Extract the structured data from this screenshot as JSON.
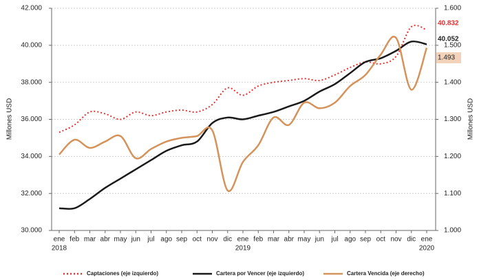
{
  "chart_data": {
    "type": "line",
    "categories": [
      "ene",
      "feb",
      "mar",
      "abr",
      "may",
      "jun",
      "jul",
      "ago",
      "sep",
      "oct",
      "nov",
      "dic",
      "ene",
      "feb",
      "mar",
      "abr",
      "may",
      "jun",
      "jul",
      "ago",
      "sep",
      "oct",
      "nov",
      "dic",
      "ene"
    ],
    "category_years": [
      "2018",
      null,
      null,
      null,
      null,
      null,
      null,
      null,
      null,
      null,
      null,
      null,
      "2019",
      null,
      null,
      null,
      null,
      null,
      null,
      null,
      null,
      null,
      null,
      null,
      "2020"
    ],
    "ylabel": "Millones USD",
    "y2label": "Millones USD",
    "ylim": [
      30000,
      42000
    ],
    "yticks": [
      {
        "value": 30000,
        "label": "30.000"
      },
      {
        "value": 32000,
        "label": "32.000"
      },
      {
        "value": 34000,
        "label": "34.000"
      },
      {
        "value": 36000,
        "label": "36.000"
      },
      {
        "value": 38000,
        "label": "38.000"
      },
      {
        "value": 40000,
        "label": "40.000"
      },
      {
        "value": 42000,
        "label": "42.000"
      }
    ],
    "y2lim": [
      1000,
      1600
    ],
    "y2ticks": [
      {
        "value": 1000,
        "label": "1.000"
      },
      {
        "value": 1100,
        "label": "1.100"
      },
      {
        "value": 1200,
        "label": "1.200"
      },
      {
        "value": 1300,
        "label": "1.300"
      },
      {
        "value": 1400,
        "label": "1.400"
      },
      {
        "value": 1500,
        "label": "1.500"
      },
      {
        "value": 1600,
        "label": "1.600"
      }
    ],
    "grid": true,
    "legend": "bottom",
    "series": [
      {
        "name": "Captaciones (eje izquierdo)",
        "color": "#e8302e",
        "style": "dotted",
        "values": [
          35300,
          35700,
          36400,
          36300,
          36000,
          36400,
          36200,
          36400,
          36500,
          36400,
          36800,
          37700,
          37300,
          37800,
          38000,
          38100,
          38200,
          38100,
          38400,
          38800,
          39100,
          39000,
          39400,
          41000,
          40832
        ],
        "value_labels": [
          null,
          null,
          null,
          null,
          null,
          null,
          null,
          null,
          null,
          null,
          null,
          null,
          null,
          null,
          null,
          null,
          null,
          null,
          null,
          null,
          null,
          null,
          null,
          null,
          "40.832"
        ]
      },
      {
        "name": "Cartera por Vencer (eje izquierdo)",
        "color": "#1a1a1a",
        "style": "solid",
        "values": [
          31200,
          31200,
          31700,
          32300,
          32800,
          33300,
          33800,
          34300,
          34600,
          34800,
          35800,
          36100,
          36000,
          36200,
          36400,
          36700,
          37000,
          37500,
          37900,
          38500,
          39100,
          39300,
          39700,
          40200,
          40052
        ],
        "value_labels": [
          null,
          null,
          null,
          null,
          null,
          null,
          null,
          null,
          null,
          null,
          null,
          null,
          null,
          null,
          null,
          null,
          null,
          null,
          null,
          null,
          null,
          null,
          null,
          null,
          "40.052"
        ]
      },
      {
        "name": "Cartera Vencida (eje derecho)",
        "color": "#d4935a",
        "style": "solid",
        "axis": "y2",
        "values": [
          1205,
          1245,
          1223,
          1240,
          1255,
          1195,
          1220,
          1240,
          1250,
          1255,
          1270,
          1108,
          1185,
          1230,
          1305,
          1285,
          1345,
          1330,
          1345,
          1390,
          1420,
          1475,
          1520,
          1380,
          1493
        ],
        "value_labels": [
          null,
          null,
          null,
          null,
          null,
          null,
          null,
          null,
          null,
          null,
          null,
          null,
          null,
          null,
          null,
          null,
          null,
          null,
          null,
          null,
          null,
          null,
          null,
          null,
          "1.493"
        ]
      }
    ]
  }
}
